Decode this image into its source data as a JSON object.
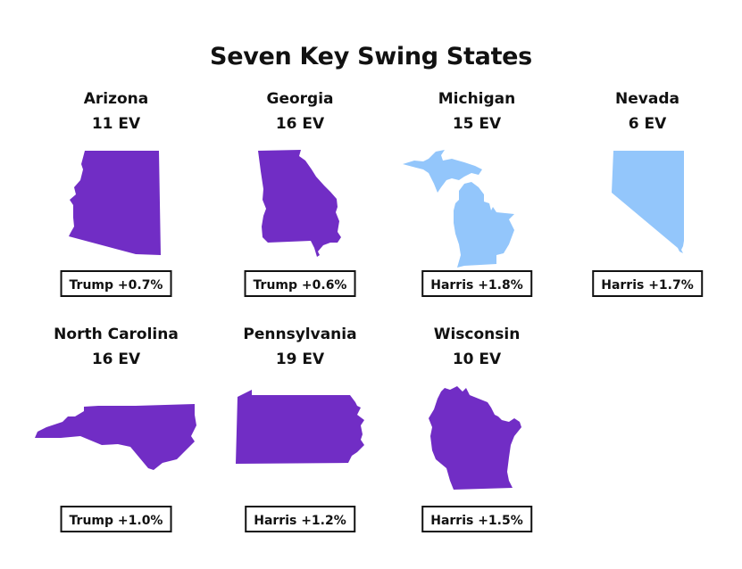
{
  "title": "Seven Key Swing States",
  "colors": {
    "trump_win": "#712DC5",
    "harris_win": "#93C6FB",
    "box_border": "#111111"
  },
  "states": [
    {
      "name": "Arizona",
      "ev": "11 EV",
      "result": "Trump +0.7%",
      "winner": "Trump",
      "shape_icon": "arizona-map-icon"
    },
    {
      "name": "Georgia",
      "ev": "16 EV",
      "result": "Trump +0.6%",
      "winner": "Trump",
      "shape_icon": "georgia-map-icon"
    },
    {
      "name": "Michigan",
      "ev": "15 EV",
      "result": "Harris +1.8%",
      "winner": "Harris",
      "shape_icon": "michigan-map-icon"
    },
    {
      "name": "Nevada",
      "ev": "6 EV",
      "result": "Harris +1.7%",
      "winner": "Harris",
      "shape_icon": "nevada-map-icon"
    },
    {
      "name": "North Carolina",
      "ev": "16 EV",
      "result": "Trump +1.0%",
      "winner": "Trump",
      "shape_icon": "north-carolina-map-icon"
    },
    {
      "name": "Pennsylvania",
      "ev": "19 EV",
      "result": "Harris +1.2%",
      "winner": "Harris",
      "shape_icon": "pennsylvania-map-icon"
    },
    {
      "name": "Wisconsin",
      "ev": "10 EV",
      "result": "Harris +1.5%",
      "winner": "Harris",
      "shape_icon": "wisconsin-map-icon"
    }
  ]
}
